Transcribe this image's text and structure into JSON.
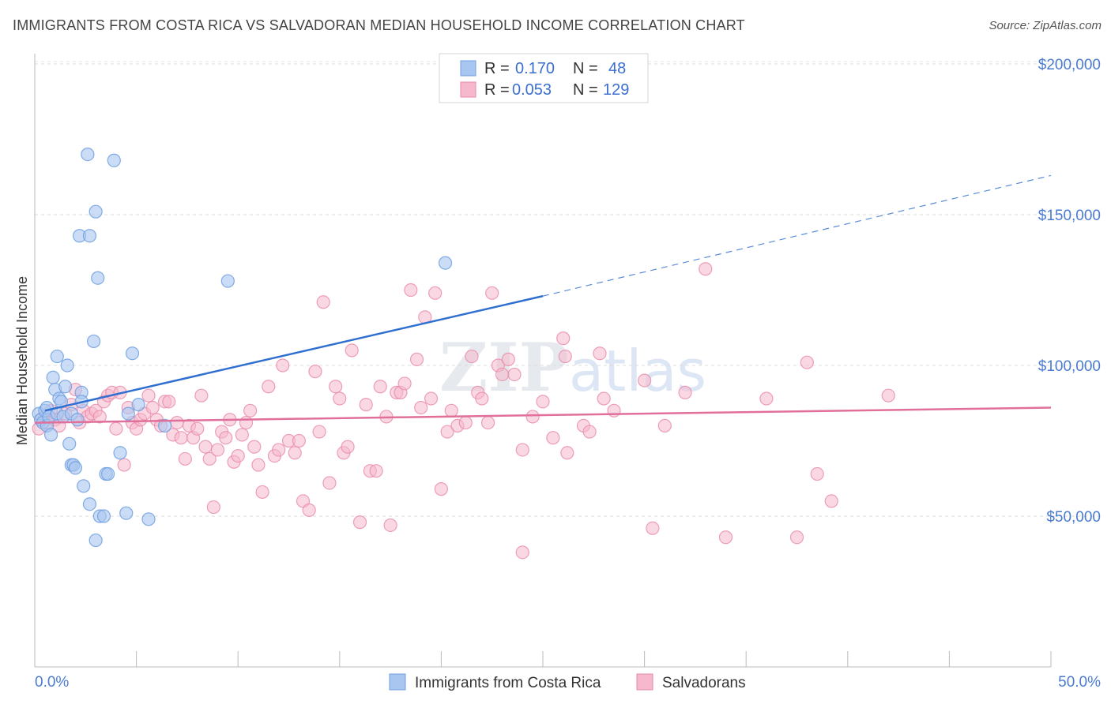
{
  "header": {
    "title": "IMMIGRANTS FROM COSTA RICA VS SALVADORAN MEDIAN HOUSEHOLD INCOME CORRELATION CHART",
    "source": "Source: ZipAtlas.com"
  },
  "watermark": {
    "zip": "ZIP",
    "atlas": "atlas"
  },
  "legend_top": {
    "rows": [
      {
        "r_label": "R =",
        "r_value": "0.170",
        "n_label": "N =",
        "n_value": "48",
        "color": "#a9c6f0"
      },
      {
        "r_label": "R =",
        "r_value": "0.053",
        "n_label": "N =",
        "n_value": "129",
        "color": "#f5b8cc"
      }
    ]
  },
  "legend_bottom": {
    "items": [
      {
        "label": "Immigrants from Costa Rica",
        "color": "#a9c6f0"
      },
      {
        "label": "Salvadorans",
        "color": "#f5b8cc"
      }
    ]
  },
  "chart_data": {
    "type": "scatter",
    "title": "IMMIGRANTS FROM COSTA RICA VS SALVADORAN MEDIAN HOUSEHOLD INCOME CORRELATION CHART",
    "xlabel": "",
    "ylabel": "Median Household Income",
    "xlim": [
      0,
      50
    ],
    "ylim": [
      0,
      210000
    ],
    "x_tick_labels": [
      "0.0%",
      "50.0%"
    ],
    "y_ticks": [
      50000,
      100000,
      150000,
      200000
    ],
    "y_tick_labels": [
      "$50,000",
      "$100,000",
      "$150,000",
      "$200,000"
    ],
    "grid": "horizontal dashed",
    "legend": "top-center",
    "colors": {
      "blue_fill": "#a9c6f0",
      "blue_stroke": "#6f9fe0",
      "blue_line": "#2f6fd0",
      "pink_fill": "#f5b8cc",
      "pink_stroke": "#e88aa8",
      "pink_line": "#e0709a"
    },
    "series": [
      {
        "name": "Immigrants from Costa Rica",
        "color": "#a9c6f0",
        "trend": {
          "x": [
            0.5,
            25
          ],
          "y": [
            85000,
            123000
          ],
          "dashed_to": [
            50,
            163000
          ]
        },
        "points": [
          [
            0.2,
            84000
          ],
          [
            0.3,
            82000
          ],
          [
            0.4,
            81000
          ],
          [
            0.5,
            85000
          ],
          [
            0.6,
            86000
          ],
          [
            0.6,
            80000
          ],
          [
            0.7,
            83000
          ],
          [
            0.8,
            77000
          ],
          [
            0.9,
            96000
          ],
          [
            1.0,
            92000
          ],
          [
            1.1,
            103000
          ],
          [
            1.1,
            84000
          ],
          [
            1.2,
            89000
          ],
          [
            1.3,
            88000
          ],
          [
            1.4,
            83000
          ],
          [
            1.5,
            93000
          ],
          [
            1.6,
            100000
          ],
          [
            1.7,
            74000
          ],
          [
            1.8,
            84000
          ],
          [
            1.8,
            67000
          ],
          [
            1.9,
            67000
          ],
          [
            2.0,
            66000
          ],
          [
            2.1,
            82000
          ],
          [
            2.2,
            143000
          ],
          [
            2.3,
            91000
          ],
          [
            2.3,
            88000
          ],
          [
            2.4,
            60000
          ],
          [
            2.6,
            170000
          ],
          [
            2.7,
            143000
          ],
          [
            2.7,
            54000
          ],
          [
            2.9,
            108000
          ],
          [
            3.0,
            151000
          ],
          [
            3.0,
            42000
          ],
          [
            3.1,
            129000
          ],
          [
            3.2,
            50000
          ],
          [
            3.4,
            50000
          ],
          [
            3.5,
            64000
          ],
          [
            3.6,
            64000
          ],
          [
            3.9,
            168000
          ],
          [
            4.2,
            71000
          ],
          [
            4.5,
            51000
          ],
          [
            4.6,
            84000
          ],
          [
            4.8,
            104000
          ],
          [
            5.1,
            87000
          ],
          [
            5.6,
            49000
          ],
          [
            6.4,
            80000
          ],
          [
            9.5,
            128000
          ],
          [
            20.2,
            134000
          ]
        ]
      },
      {
        "name": "Salvadorans",
        "color": "#f5b8cc",
        "trend": {
          "x": [
            0,
            50
          ],
          "y": [
            81000,
            86000
          ]
        },
        "points": [
          [
            0.2,
            79000
          ],
          [
            0.3,
            82000
          ],
          [
            0.5,
            83000
          ],
          [
            0.6,
            81000
          ],
          [
            0.8,
            85000
          ],
          [
            1.0,
            82000
          ],
          [
            1.2,
            80000
          ],
          [
            1.5,
            84000
          ],
          [
            1.8,
            87000
          ],
          [
            2.0,
            92000
          ],
          [
            2.2,
            81000
          ],
          [
            2.4,
            85000
          ],
          [
            2.6,
            83000
          ],
          [
            2.8,
            84000
          ],
          [
            3.0,
            85000
          ],
          [
            3.2,
            83000
          ],
          [
            3.4,
            88000
          ],
          [
            3.6,
            90000
          ],
          [
            3.8,
            91000
          ],
          [
            4.0,
            79000
          ],
          [
            4.2,
            91000
          ],
          [
            4.4,
            67000
          ],
          [
            4.6,
            86000
          ],
          [
            4.8,
            81000
          ],
          [
            5.0,
            79000
          ],
          [
            5.2,
            82000
          ],
          [
            5.4,
            84000
          ],
          [
            5.6,
            90000
          ],
          [
            5.8,
            86000
          ],
          [
            6.0,
            82000
          ],
          [
            6.2,
            80000
          ],
          [
            6.4,
            88000
          ],
          [
            6.6,
            88000
          ],
          [
            6.8,
            77000
          ],
          [
            7.0,
            81000
          ],
          [
            7.2,
            76000
          ],
          [
            7.4,
            69000
          ],
          [
            7.6,
            80000
          ],
          [
            7.8,
            76000
          ],
          [
            8.0,
            79000
          ],
          [
            8.2,
            90000
          ],
          [
            8.4,
            73000
          ],
          [
            8.6,
            69000
          ],
          [
            8.8,
            53000
          ],
          [
            9.0,
            72000
          ],
          [
            9.2,
            78000
          ],
          [
            9.4,
            76000
          ],
          [
            9.6,
            82000
          ],
          [
            9.8,
            68000
          ],
          [
            10.0,
            70000
          ],
          [
            10.2,
            77000
          ],
          [
            10.4,
            81000
          ],
          [
            10.6,
            85000
          ],
          [
            10.8,
            73000
          ],
          [
            11.0,
            67000
          ],
          [
            11.2,
            58000
          ],
          [
            11.5,
            93000
          ],
          [
            11.8,
            70000
          ],
          [
            12.0,
            72000
          ],
          [
            12.2,
            100000
          ],
          [
            12.5,
            75000
          ],
          [
            12.8,
            71000
          ],
          [
            13.0,
            75000
          ],
          [
            13.2,
            55000
          ],
          [
            13.5,
            52000
          ],
          [
            13.8,
            98000
          ],
          [
            14.0,
            78000
          ],
          [
            14.2,
            121000
          ],
          [
            14.5,
            61000
          ],
          [
            14.8,
            93000
          ],
          [
            15.0,
            89000
          ],
          [
            15.2,
            71000
          ],
          [
            15.4,
            73000
          ],
          [
            15.6,
            105000
          ],
          [
            16.0,
            48000
          ],
          [
            16.3,
            87000
          ],
          [
            16.5,
            65000
          ],
          [
            16.8,
            65000
          ],
          [
            17.0,
            93000
          ],
          [
            17.3,
            83000
          ],
          [
            17.5,
            47000
          ],
          [
            17.8,
            91000
          ],
          [
            18.0,
            91000
          ],
          [
            18.2,
            94000
          ],
          [
            18.5,
            125000
          ],
          [
            18.8,
            102000
          ],
          [
            19.0,
            86000
          ],
          [
            19.2,
            116000
          ],
          [
            19.5,
            89000
          ],
          [
            19.7,
            124000
          ],
          [
            20.0,
            59000
          ],
          [
            20.3,
            78000
          ],
          [
            20.5,
            85000
          ],
          [
            20.8,
            80000
          ],
          [
            21.2,
            81000
          ],
          [
            21.5,
            103000
          ],
          [
            21.8,
            91000
          ],
          [
            22.0,
            89000
          ],
          [
            22.3,
            81000
          ],
          [
            22.5,
            124000
          ],
          [
            22.8,
            100000
          ],
          [
            23.0,
            97000
          ],
          [
            23.3,
            102000
          ],
          [
            23.6,
            97000
          ],
          [
            24.0,
            72000
          ],
          [
            24.5,
            83000
          ],
          [
            25.0,
            88000
          ],
          [
            25.5,
            76000
          ],
          [
            26.0,
            109000
          ],
          [
            26.2,
            71000
          ],
          [
            27.0,
            80000
          ],
          [
            27.3,
            78000
          ],
          [
            27.8,
            104000
          ],
          [
            28.0,
            89000
          ],
          [
            28.5,
            85000
          ],
          [
            30.0,
            95000
          ],
          [
            30.4,
            46000
          ],
          [
            31.0,
            80000
          ],
          [
            32.0,
            91000
          ],
          [
            33.0,
            132000
          ],
          [
            34.0,
            43000
          ],
          [
            36.0,
            89000
          ],
          [
            37.5,
            43000
          ],
          [
            38.0,
            101000
          ],
          [
            38.5,
            64000
          ],
          [
            39.2,
            55000
          ],
          [
            42.0,
            90000
          ],
          [
            26.1,
            103000
          ],
          [
            24.0,
            38000
          ]
        ]
      }
    ]
  }
}
